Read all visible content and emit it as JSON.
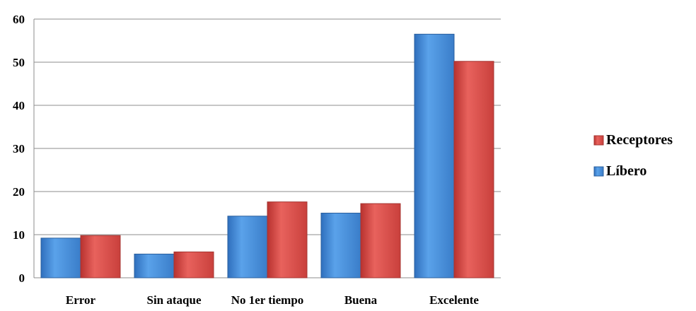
{
  "chart_data": {
    "type": "bar",
    "categories": [
      "Error",
      "Sin ataque",
      "No 1er tiempo",
      "Buena",
      "Excelente"
    ],
    "series": [
      {
        "name": "Líbero",
        "color": "#4a8fdc",
        "values": [
          9.2,
          5.5,
          14.3,
          15.0,
          56.5
        ]
      },
      {
        "name": "Receptores",
        "color": "#d9534f",
        "values": [
          9.8,
          6.0,
          17.6,
          17.2,
          50.2
        ]
      }
    ],
    "ylim": [
      0,
      60
    ],
    "yticks": [
      0,
      10,
      20,
      30,
      40,
      50,
      60
    ],
    "grid": true,
    "legend_position": "right",
    "legend_order": [
      "Receptores",
      "Líbero"
    ]
  }
}
